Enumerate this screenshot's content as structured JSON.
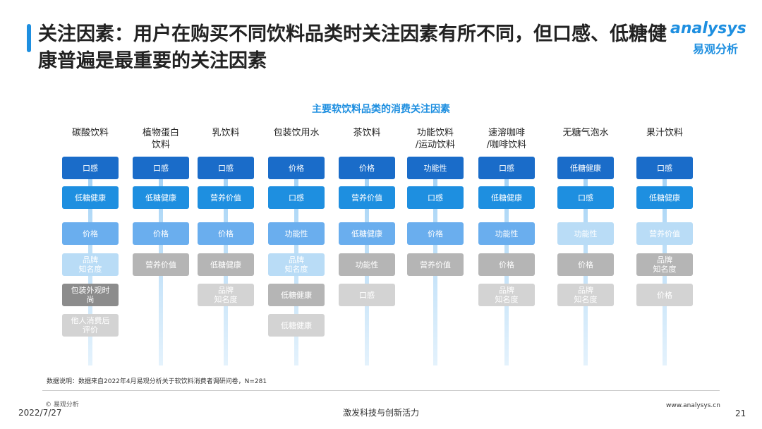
{
  "header": {
    "title": "关注因素：用户在购买不同饮料品类时关注因素有所不同，但口感、低糖健康普遍是最重要的关注因素",
    "logo": "analysys",
    "logo_cn": "易观分析"
  },
  "diagram": {
    "title": "主要软饮料品类的消费关注因素",
    "columns": [
      {
        "name": "碳酸饮料",
        "items": [
          {
            "label": "口感",
            "color": "#1a6cc9"
          },
          {
            "label": "低糖健康",
            "color": "#1e8fe0"
          },
          {
            "label": "价格",
            "color": "#6aaeee"
          },
          {
            "label": "品牌\n知名度",
            "color": "#b9dcf6"
          },
          {
            "label": "包装外观时\n尚",
            "color": "#8c8c8c"
          },
          {
            "label": "他人消费后\n评价",
            "color": "#d3d3d3"
          }
        ]
      },
      {
        "name": "植物蛋白\n饮料",
        "items": [
          {
            "label": "口感",
            "color": "#1a6cc9"
          },
          {
            "label": "低糖健康",
            "color": "#1e8fe0"
          },
          {
            "label": "价格",
            "color": "#6aaeee"
          },
          {
            "label": "营养价值",
            "color": "#b5b5b5"
          }
        ]
      },
      {
        "name": "乳饮料",
        "items": [
          {
            "label": "口感",
            "color": "#1a6cc9"
          },
          {
            "label": "营养价值",
            "color": "#1e8fe0"
          },
          {
            "label": "价格",
            "color": "#6aaeee"
          },
          {
            "label": "低糖健康",
            "color": "#b5b5b5"
          },
          {
            "label": "品牌\n知名度",
            "color": "#d3d3d3"
          }
        ]
      },
      {
        "name": "包装饮用水",
        "items": [
          {
            "label": "价格",
            "color": "#1a6cc9"
          },
          {
            "label": "口感",
            "color": "#1e8fe0"
          },
          {
            "label": "功能性",
            "color": "#6aaeee"
          },
          {
            "label": "品牌\n知名度",
            "color": "#b9dcf6"
          },
          {
            "label": "低糖健康",
            "color": "#b5b5b5"
          },
          {
            "label": "低糖健康",
            "color": "#d3d3d3"
          }
        ]
      },
      {
        "name": "茶饮料",
        "items": [
          {
            "label": "价格",
            "color": "#1a6cc9"
          },
          {
            "label": "营养价值",
            "color": "#1e8fe0"
          },
          {
            "label": "低糖健康",
            "color": "#6aaeee"
          },
          {
            "label": "功能性",
            "color": "#b5b5b5"
          },
          {
            "label": "口感",
            "color": "#d3d3d3"
          }
        ]
      },
      {
        "name": "功能饮料\n/运动饮料",
        "items": [
          {
            "label": "功能性",
            "color": "#1a6cc9"
          },
          {
            "label": "口感",
            "color": "#1e8fe0"
          },
          {
            "label": "价格",
            "color": "#6aaeee"
          },
          {
            "label": "营养价值",
            "color": "#b5b5b5"
          }
        ]
      },
      {
        "name": "速溶咖啡\n/咖啡饮料",
        "items": [
          {
            "label": "口感",
            "color": "#1a6cc9"
          },
          {
            "label": "低糖健康",
            "color": "#1e8fe0"
          },
          {
            "label": "功能性",
            "color": "#6aaeee"
          },
          {
            "label": "价格",
            "color": "#b5b5b5"
          },
          {
            "label": "品牌\n知名度",
            "color": "#d3d3d3"
          }
        ]
      },
      {
        "name": "无糖气泡水",
        "items": [
          {
            "label": "低糖健康",
            "color": "#1a6cc9"
          },
          {
            "label": "口感",
            "color": "#1e8fe0"
          },
          {
            "label": "功能性",
            "color": "#b9dcf6"
          },
          {
            "label": "价格",
            "color": "#b5b5b5"
          },
          {
            "label": "品牌\n知名度",
            "color": "#d3d3d3"
          }
        ]
      },
      {
        "name": "果汁饮料",
        "items": [
          {
            "label": "口感",
            "color": "#1a6cc9"
          },
          {
            "label": "低糖健康",
            "color": "#1e8fe0"
          },
          {
            "label": "营养价值",
            "color": "#b9dcf6"
          },
          {
            "label": "品牌\n知名度",
            "color": "#b5b5b5"
          },
          {
            "label": "价格",
            "color": "#d3d3d3"
          }
        ]
      }
    ]
  },
  "note": "数据说明：数据来自2022年4月易观分析关于软饮料消费者调研问卷，N=281",
  "footer": {
    "copyright": "© 易观分析",
    "date": "2022/7/27",
    "slogan": "激发科技与创新活力",
    "url": "www.analysys.cn",
    "page": "21"
  }
}
